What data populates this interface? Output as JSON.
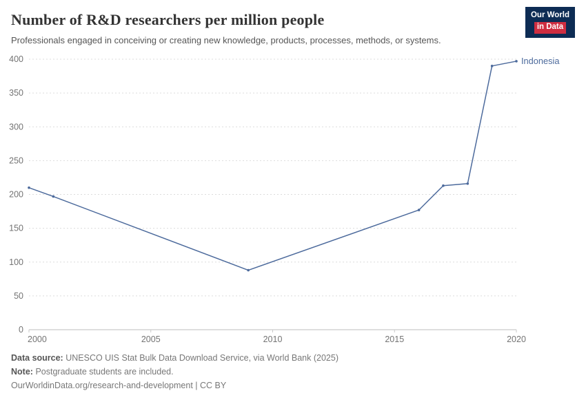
{
  "colors": {
    "line": "#4c6a9c",
    "logo_navy": "#0d2c54",
    "logo_red": "#cf2e41"
  },
  "header": {
    "title": "Number of R&D researchers per million people",
    "subtitle": "Professionals engaged in conceiving or creating new knowledge, products, processes, methods, or systems.",
    "logo_line1": "Our World",
    "logo_line2": "in Data"
  },
  "chart_data": {
    "type": "line",
    "title": "Number of R&D researchers per million people",
    "xlabel": "",
    "ylabel": "",
    "xlim": [
      2000,
      2020
    ],
    "ylim": [
      0,
      400
    ],
    "x_ticks": [
      2000,
      2005,
      2010,
      2015,
      2020
    ],
    "y_ticks": [
      0,
      50,
      100,
      150,
      200,
      250,
      300,
      350,
      400
    ],
    "grid": "horizontal-dashed",
    "legend": "inline-end-label",
    "series": [
      {
        "name": "Indonesia",
        "color": "#4c6a9c",
        "points": [
          {
            "x": 2000,
            "y": 210
          },
          {
            "x": 2001,
            "y": 197
          },
          {
            "x": 2009,
            "y": 88
          },
          {
            "x": 2016,
            "y": 177
          },
          {
            "x": 2017,
            "y": 213
          },
          {
            "x": 2018,
            "y": 216
          },
          {
            "x": 2019,
            "y": 390
          },
          {
            "x": 2020,
            "y": 397
          }
        ]
      }
    ]
  },
  "footer": {
    "source_label": "Data source:",
    "source_text": "UNESCO UIS Stat Bulk Data Download Service, via World Bank (2025)",
    "note_label": "Note:",
    "note_text": "Postgraduate students are included.",
    "url": "OurWorldinData.org/research-and-development | CC BY"
  }
}
